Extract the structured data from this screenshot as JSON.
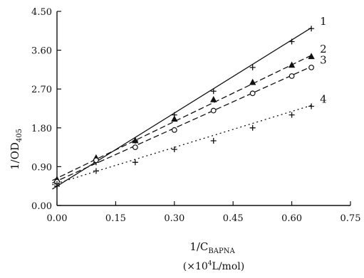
{
  "chart_data": {
    "type": "line",
    "ylabel": "1/OD",
    "ylabel_sub": "405",
    "xlabel": "1/C",
    "xlabel_sub": "BAPNA",
    "xunit_prefix": "(×10",
    "xunit_exp": "4",
    "xunit_suffix": "L/mol)",
    "xlim": [
      0.0,
      0.75
    ],
    "ylim": [
      0.0,
      4.5
    ],
    "x_ticks": [
      0.0,
      0.15,
      0.3,
      0.45,
      0.6,
      0.75
    ],
    "x_tick_labels": [
      "0.00",
      "0.15",
      "0.30",
      "0.45",
      "0.60",
      "0.75"
    ],
    "y_ticks": [
      0.0,
      0.9,
      1.8,
      2.7,
      3.6,
      4.5
    ],
    "y_tick_labels": [
      "0.00",
      "0.90",
      "1.80",
      "2.70",
      "3.60",
      "4.50"
    ],
    "grid": false,
    "series": [
      {
        "name": "1",
        "marker": "plus",
        "dash": "solid",
        "points": [
          [
            0.0,
            0.45
          ],
          [
            0.1,
            1.0
          ],
          [
            0.2,
            1.5
          ],
          [
            0.3,
            2.1
          ],
          [
            0.4,
            2.65
          ],
          [
            0.5,
            3.2
          ],
          [
            0.6,
            3.8
          ],
          [
            0.65,
            4.1
          ]
        ],
        "fit": [
          [
            -0.012,
            0.38
          ],
          [
            0.65,
            4.12
          ]
        ]
      },
      {
        "name": "2",
        "marker": "triangle",
        "dash": "dashed",
        "points": [
          [
            0.0,
            0.6
          ],
          [
            0.1,
            1.1
          ],
          [
            0.2,
            1.5
          ],
          [
            0.3,
            2.0
          ],
          [
            0.4,
            2.45
          ],
          [
            0.5,
            2.85
          ],
          [
            0.6,
            3.25
          ],
          [
            0.65,
            3.45
          ]
        ],
        "fit": [
          [
            -0.012,
            0.58
          ],
          [
            0.65,
            3.48
          ]
        ]
      },
      {
        "name": "3",
        "marker": "circle",
        "dash": "dashed",
        "points": [
          [
            0.0,
            0.55
          ],
          [
            0.1,
            1.05
          ],
          [
            0.2,
            1.35
          ],
          [
            0.3,
            1.75
          ],
          [
            0.4,
            2.2
          ],
          [
            0.5,
            2.6
          ],
          [
            0.6,
            3.0
          ],
          [
            0.65,
            3.2
          ]
        ],
        "fit": [
          [
            -0.012,
            0.52
          ],
          [
            0.65,
            3.22
          ]
        ]
      },
      {
        "name": "4",
        "marker": "plus",
        "dash": "dotted",
        "points": [
          [
            0.0,
            0.5
          ],
          [
            0.1,
            0.8
          ],
          [
            0.2,
            1.0
          ],
          [
            0.3,
            1.3
          ],
          [
            0.4,
            1.5
          ],
          [
            0.5,
            1.8
          ],
          [
            0.6,
            2.1
          ],
          [
            0.65,
            2.3
          ]
        ],
        "fit": [
          [
            -0.012,
            0.48
          ],
          [
            0.65,
            2.32
          ]
        ]
      }
    ]
  }
}
